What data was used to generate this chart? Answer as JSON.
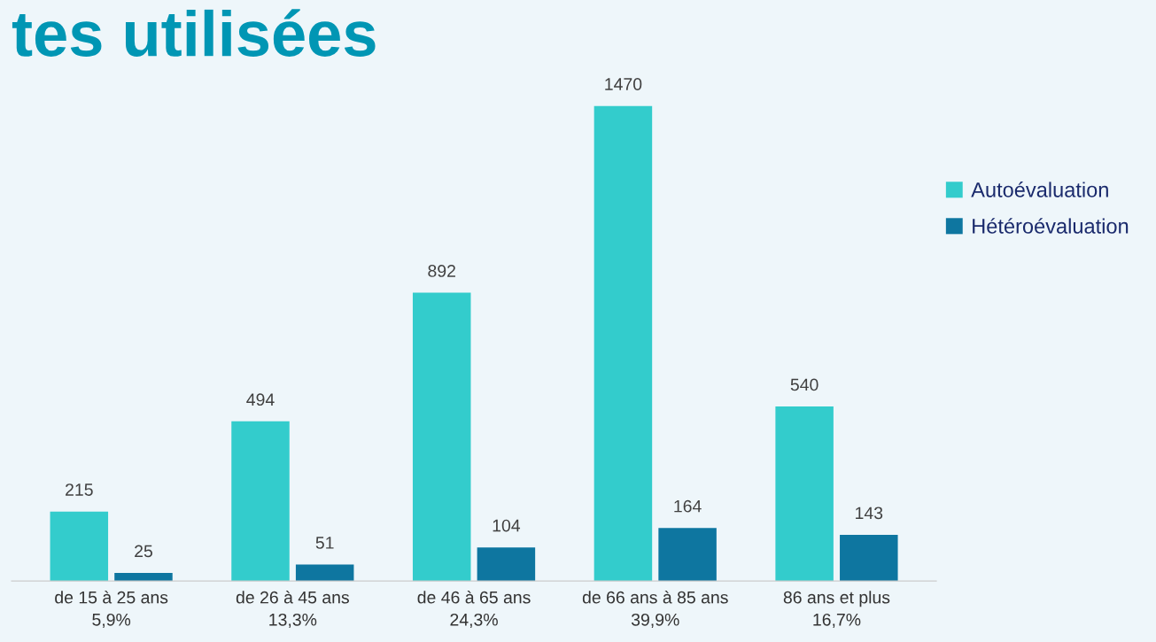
{
  "chart_data": {
    "type": "bar",
    "title": "tes utilisées",
    "categories": [
      "de 15 à 25 ans\n5,9%",
      "de 26 à 45 ans\n13,3%",
      "de 46 à 65 ans\n24,3%",
      "de 66 ans à 85 ans\n39,9%",
      "86 ans et plus\n16,7%"
    ],
    "series": [
      {
        "name": "Autoévaluation",
        "color": "#33cccc",
        "values": [
          215,
          494,
          892,
          1470,
          540
        ]
      },
      {
        "name": "Hétéroévaluation",
        "color": "#0e76a0",
        "values": [
          25,
          51,
          104,
          164,
          143
        ]
      }
    ],
    "data_labels": true,
    "legend": "top right",
    "grid": false
  }
}
